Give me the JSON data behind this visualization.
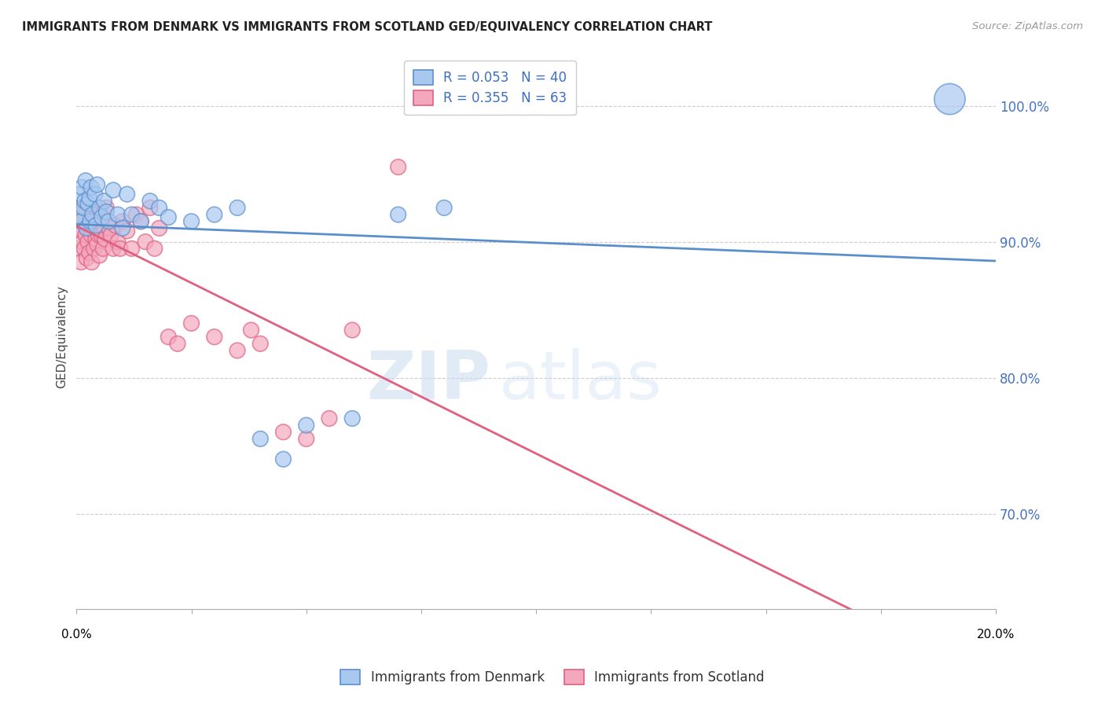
{
  "title": "IMMIGRANTS FROM DENMARK VS IMMIGRANTS FROM SCOTLAND GED/EQUIVALENCY CORRELATION CHART",
  "source": "Source: ZipAtlas.com",
  "ylabel": "GED/Equivalency",
  "denmark_color": "#A8C8F0",
  "scotland_color": "#F4A8C0",
  "denmark_edge_color": "#5B8FCC",
  "scotland_edge_color": "#E06080",
  "denmark_R": 0.053,
  "denmark_N": 40,
  "scotland_R": 0.355,
  "scotland_N": 63,
  "watermark": "ZIPatlas",
  "legend_label_denmark": "Immigrants from Denmark",
  "legend_label_scotland": "Immigrants from Scotland",
  "denmark_x": [
    0.05,
    0.08,
    0.1,
    0.12,
    0.15,
    0.18,
    0.2,
    0.22,
    0.25,
    0.28,
    0.3,
    0.32,
    0.35,
    0.4,
    0.42,
    0.45,
    0.5,
    0.55,
    0.6,
    0.65,
    0.7,
    0.8,
    0.9,
    1.0,
    1.1,
    1.2,
    1.4,
    1.6,
    1.8,
    2.0,
    2.5,
    3.0,
    3.5,
    4.0,
    4.5,
    5.0,
    6.0,
    7.0,
    8.0,
    19.0
  ],
  "denmark_y": [
    92.0,
    93.5,
    91.5,
    94.0,
    92.5,
    93.0,
    94.5,
    91.0,
    92.8,
    93.2,
    91.5,
    94.0,
    92.0,
    93.5,
    91.2,
    94.2,
    92.5,
    91.8,
    93.0,
    92.2,
    91.5,
    93.8,
    92.0,
    91.0,
    93.5,
    92.0,
    91.5,
    93.0,
    92.5,
    91.8,
    91.5,
    92.0,
    92.5,
    75.5,
    74.0,
    76.5,
    77.0,
    92.0,
    92.5,
    100.5
  ],
  "denmark_sizes": [
    200,
    200,
    200,
    200,
    200,
    200,
    200,
    200,
    200,
    200,
    200,
    200,
    200,
    200,
    200,
    200,
    200,
    200,
    200,
    200,
    200,
    200,
    200,
    200,
    200,
    200,
    200,
    200,
    200,
    200,
    200,
    200,
    200,
    200,
    200,
    200,
    200,
    200,
    200,
    800
  ],
  "scotland_x": [
    0.03,
    0.05,
    0.07,
    0.08,
    0.1,
    0.12,
    0.14,
    0.15,
    0.17,
    0.18,
    0.2,
    0.22,
    0.24,
    0.25,
    0.27,
    0.28,
    0.3,
    0.32,
    0.33,
    0.35,
    0.37,
    0.38,
    0.4,
    0.42,
    0.44,
    0.45,
    0.47,
    0.48,
    0.5,
    0.52,
    0.54,
    0.55,
    0.58,
    0.6,
    0.62,
    0.65,
    0.7,
    0.75,
    0.8,
    0.85,
    0.9,
    0.95,
    1.0,
    1.1,
    1.2,
    1.3,
    1.4,
    1.5,
    1.6,
    1.7,
    1.8,
    2.0,
    2.2,
    2.5,
    3.0,
    3.5,
    3.8,
    4.0,
    4.5,
    5.0,
    5.5,
    6.0,
    7.0
  ],
  "scotland_y": [
    91.0,
    89.5,
    92.5,
    90.8,
    88.5,
    91.5,
    90.0,
    92.0,
    89.5,
    91.8,
    90.5,
    88.8,
    92.2,
    90.0,
    91.5,
    89.2,
    91.0,
    90.5,
    88.5,
    92.0,
    90.8,
    89.5,
    91.5,
    90.2,
    92.5,
    89.8,
    91.2,
    90.5,
    89.0,
    92.0,
    90.5,
    91.8,
    89.5,
    91.0,
    90.2,
    92.5,
    91.0,
    90.5,
    89.5,
    91.2,
    90.0,
    89.5,
    91.5,
    90.8,
    89.5,
    92.0,
    91.5,
    90.0,
    92.5,
    89.5,
    91.0,
    83.0,
    82.5,
    84.0,
    83.0,
    82.0,
    83.5,
    82.5,
    76.0,
    75.5,
    77.0,
    83.5,
    95.5
  ],
  "scotland_sizes": [
    200,
    200,
    200,
    200,
    200,
    200,
    200,
    200,
    200,
    200,
    200,
    200,
    200,
    200,
    200,
    200,
    200,
    200,
    200,
    200,
    200,
    200,
    200,
    200,
    200,
    200,
    200,
    200,
    200,
    200,
    200,
    200,
    200,
    200,
    200,
    200,
    200,
    200,
    200,
    200,
    200,
    200,
    200,
    200,
    200,
    200,
    200,
    200,
    200,
    200,
    200,
    200,
    200,
    200,
    200,
    200,
    200,
    200,
    200,
    200,
    200,
    200,
    200
  ],
  "bg_color": "#FFFFFF",
  "grid_color": "#CCCCCC",
  "xlim": [
    0.0,
    20.0
  ],
  "ylim": [
    63.0,
    103.0
  ],
  "y_ticks": [
    70.0,
    80.0,
    90.0,
    100.0
  ],
  "y_tick_labels": [
    "70.0%",
    "80.0%",
    "90.0%",
    "100.0%"
  ],
  "x_ticks": [
    0.0,
    2.5,
    5.0,
    7.5,
    10.0,
    12.5,
    15.0,
    17.5,
    20.0
  ],
  "denmark_line_start_x": 0.0,
  "denmark_line_end_x": 20.0,
  "scotland_line_start_x": 0.0,
  "scotland_line_end_x": 20.0
}
